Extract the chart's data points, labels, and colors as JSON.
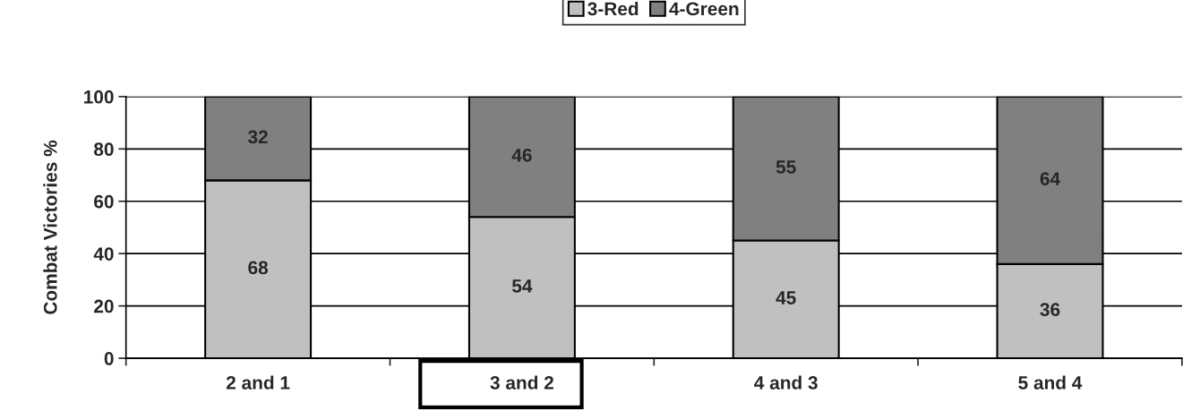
{
  "chart_data": {
    "type": "bar",
    "stacked": true,
    "ylabel": "Combat Victories %",
    "categories": [
      "2 and 1",
      "3 and 2",
      "4 and 3",
      "5 and 4"
    ],
    "series": [
      {
        "name": "3-Red",
        "color": "#c0c0c0",
        "values": [
          68,
          54,
          45,
          36
        ]
      },
      {
        "name": "4-Green",
        "color": "#808080",
        "values": [
          32,
          46,
          55,
          64
        ]
      }
    ],
    "ylim": [
      0,
      100
    ],
    "yticks": [
      0,
      20,
      40,
      60,
      80,
      100
    ],
    "grid": "y",
    "legend": "top",
    "data_labels": true
  }
}
